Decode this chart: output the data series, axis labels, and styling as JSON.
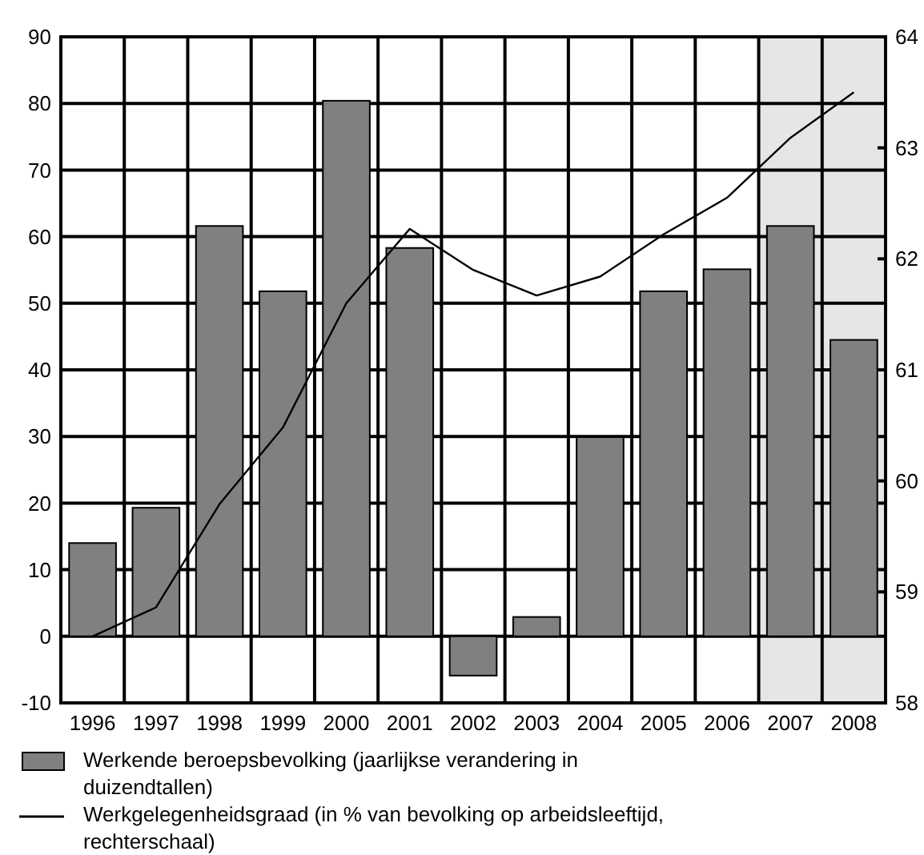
{
  "chart_data": {
    "type": "bar",
    "categories": [
      "1996",
      "1997",
      "1998",
      "1999",
      "2000",
      "2001",
      "2002",
      "2003",
      "2004",
      "2005",
      "2006",
      "2007",
      "2008"
    ],
    "series": [
      {
        "name": "Werkende beroepsbevolking (jaarlijkse verandering in duizendtallen)",
        "color": "#808080",
        "values": [
          14.0,
          19.3,
          61.6,
          51.8,
          80.4,
          58.3,
          -5.9,
          2.9,
          29.9,
          51.8,
          55.1,
          61.6,
          44.5
        ]
      },
      {
        "name": "Werkgelegenheidsgraad (in % van bevolking op arbeidsleeftijd, rechterschaal)",
        "type": "line",
        "axis": "y2",
        "color": "#000000",
        "values": [
          58.6,
          58.86,
          59.79,
          60.48,
          61.6,
          62.27,
          61.9,
          61.67,
          61.84,
          62.22,
          62.55,
          63.09,
          63.5
        ]
      }
    ],
    "ylim": [
      -10,
      90
    ],
    "yticks": [
      -10,
      0,
      10,
      20,
      30,
      40,
      50,
      60,
      70,
      80,
      90
    ],
    "y2lim": [
      58,
      64
    ],
    "y2ticks": [
      58,
      59,
      60,
      61,
      62,
      63,
      64
    ],
    "bands": [
      {
        "axis": "x",
        "from": "2007",
        "to": "2008",
        "color": "#e6e6e6"
      }
    ],
    "grid": true,
    "legend": "bottom",
    "marker": "none",
    "line_style": "solid"
  }
}
